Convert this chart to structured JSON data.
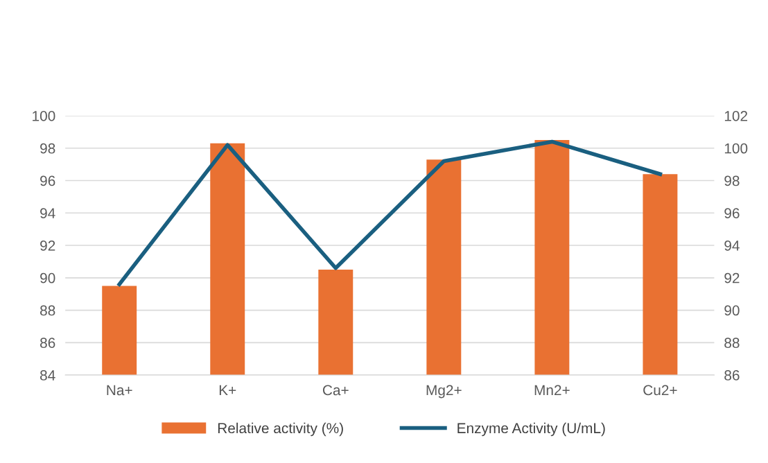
{
  "chart_data": {
    "type": "bar",
    "categories": [
      "Na+",
      "K+",
      "Ca+",
      "Mg2+",
      "Mn2+",
      "Cu2+"
    ],
    "series": [
      {
        "name": "Relative activity (%)",
        "color": "#e97132",
        "values": [
          89.5,
          98.3,
          90.5,
          97.3,
          98.5,
          96.4
        ]
      },
      {
        "name": "Enzyme Activity (U/mL)",
        "color": "#1a5f80",
        "type": "line",
        "axis": "y2",
        "values": [
          91.6,
          100.2,
          92.6,
          99.2,
          100.4,
          98.4
        ]
      }
    ],
    "ylim": [
      84,
      100
    ],
    "yticks": [
      84,
      86,
      88,
      90,
      92,
      94,
      96,
      98,
      100
    ],
    "y2lim": [
      86,
      102
    ],
    "y2ticks": [
      86,
      88,
      90,
      92,
      94,
      96,
      98,
      100,
      102
    ],
    "grid": "y",
    "legend": "bottom",
    "marker": "none",
    "line_style": "solid"
  }
}
